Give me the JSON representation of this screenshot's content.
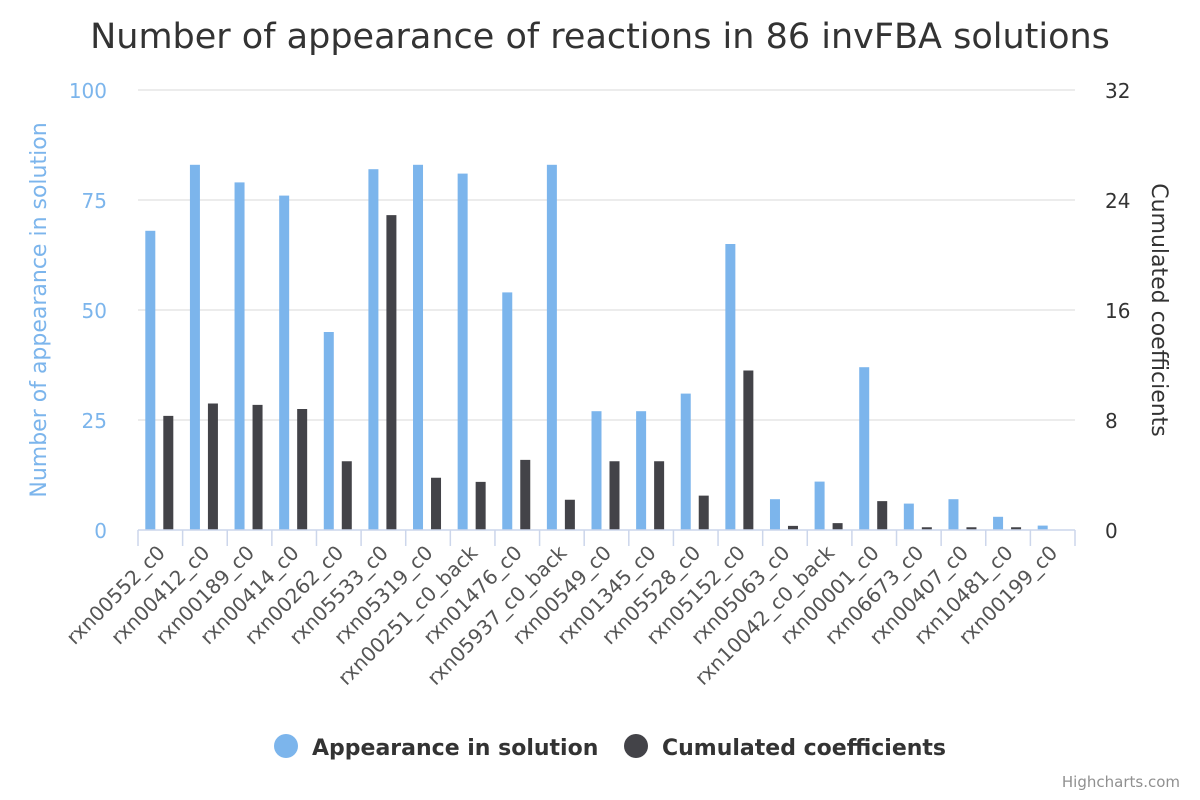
{
  "chart_data": {
    "type": "bar",
    "title": "Number of appearance of reactions in 86 invFBA solutions",
    "categories": [
      "rxn00552_c0",
      "rxn00412_c0",
      "rxn00189_c0",
      "rxn00414_c0",
      "rxn00262_c0",
      "rxn05533_c0",
      "rxn05319_c0",
      "rxn00251_c0_back",
      "rxn01476_c0",
      "rxn05937_c0_back",
      "rxn00549_c0",
      "rxn01345_c0",
      "rxn05528_c0",
      "rxn05152_c0",
      "rxn05063_c0",
      "rxn10042_c0_back",
      "rxn00001_c0",
      "rxn06673_c0",
      "rxn00407_c0",
      "rxn10481_c0",
      "rxn00199_c0"
    ],
    "series": [
      {
        "name": "Appearance in solution",
        "color": "#7cb5ec",
        "axis": "left",
        "values": [
          68,
          83,
          79,
          76,
          45,
          82,
          83,
          81,
          54,
          83,
          27,
          27,
          31,
          65,
          7,
          11,
          37,
          6,
          7,
          3,
          1
        ]
      },
      {
        "name": "Cumulated coefficients",
        "color": "#434348",
        "axis": "right",
        "values": [
          8.3,
          9.2,
          9.1,
          8.8,
          5.0,
          22.9,
          3.8,
          3.5,
          5.1,
          2.2,
          5.0,
          5.0,
          2.5,
          11.6,
          0.3,
          0.5,
          2.1,
          0.2,
          0.2,
          0.2,
          0
        ]
      }
    ],
    "y_left": {
      "label": "Number of appearance in solution",
      "range": [
        0,
        100
      ],
      "ticks": [
        0,
        25,
        50,
        75,
        100
      ],
      "tick_labels": [
        "0",
        "25",
        "50",
        "75",
        "100"
      ],
      "color": "#7cb5ec"
    },
    "y_right": {
      "label": "Cumulated coefficients",
      "range": [
        0,
        32
      ],
      "ticks": [
        0,
        8,
        16,
        24,
        32
      ],
      "tick_labels": [
        "0",
        "8",
        "16",
        "24",
        "32"
      ],
      "color": "#333333"
    },
    "grid": true,
    "legend_position": "bottom-center"
  },
  "credit": "Highcharts.com"
}
